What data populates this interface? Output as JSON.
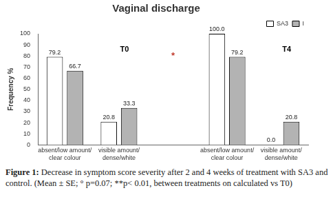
{
  "chart_data": {
    "type": "bar",
    "title": "Vaginal discharge",
    "y_label": "Frequency %",
    "categories": [
      "absent/low amount/ clear colour",
      "visible amount/ dense/white",
      null,
      "absent/low amount/ clear colour",
      "visible amount/ dense/white"
    ],
    "series": [
      {
        "name": "SA3",
        "color": "#ffffff",
        "values": [
          79.2,
          20.8,
          null,
          100.0,
          0.0
        ],
        "value_labels": [
          "79.2",
          "20.8",
          null,
          "100.0",
          "0.0"
        ]
      },
      {
        "name": "I",
        "color": "#b3b3b3",
        "values": [
          66.7,
          33.3,
          null,
          79.2,
          20.8
        ],
        "value_labels": [
          "66.7",
          "33.3",
          null,
          "79.2",
          "20.8"
        ]
      }
    ],
    "group_labels": [
      "T0",
      "T4"
    ],
    "annotation": "*",
    "ylim": [
      0,
      100
    ],
    "yticks": [
      0,
      10,
      20,
      30,
      40,
      50,
      60,
      70,
      80,
      90,
      100
    ],
    "grid": false,
    "legend": "top-right",
    "data_labels": true
  },
  "caption_label": "Figure 1:",
  "caption": "Decrease in symptom score severity after 2 and 4 weeks of treatment with SA3 and control. (Mean ± SE; ° p=0.07; **p< 0.01, between treatments on calculated vs T0)"
}
